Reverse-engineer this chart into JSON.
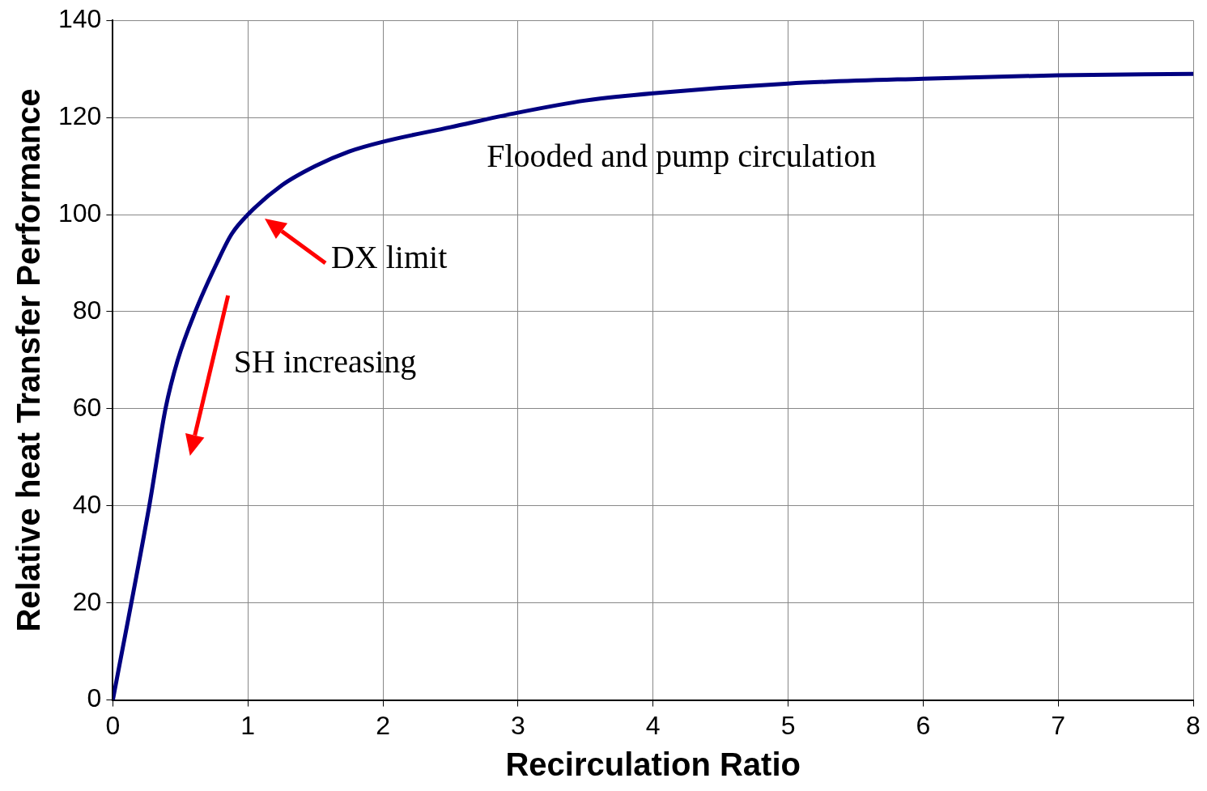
{
  "chart_data": {
    "type": "line",
    "xlabel": "Recirculation Ratio",
    "ylabel": "Relative heat Transfer Performance",
    "x": [
      0,
      0.27,
      0.39,
      0.48,
      0.61,
      0.77,
      0.88,
      1,
      1.25,
      1.5,
      1.75,
      2,
      2.5,
      3,
      3.5,
      4,
      5,
      6,
      7,
      8
    ],
    "series": [
      {
        "color": "#000080",
        "values": [
          0,
          40,
          60,
          70,
          80,
          90,
          96,
          100,
          106,
          110,
          113,
          115,
          118,
          121,
          123.5,
          125,
          127,
          128,
          128.7,
          129
        ]
      }
    ],
    "xlim": [
      0,
      8
    ],
    "xticks": [
      0,
      1,
      2,
      3,
      4,
      5,
      6,
      7,
      8
    ],
    "ylim": [
      0,
      140
    ],
    "yticks": [
      0,
      20,
      40,
      60,
      80,
      100,
      120,
      140
    ],
    "grid": true,
    "legend": false,
    "marker": "none",
    "line_style": "solid",
    "annotations": [
      "Flooded and pump circulation",
      "DX limit",
      "SH increasing"
    ]
  }
}
